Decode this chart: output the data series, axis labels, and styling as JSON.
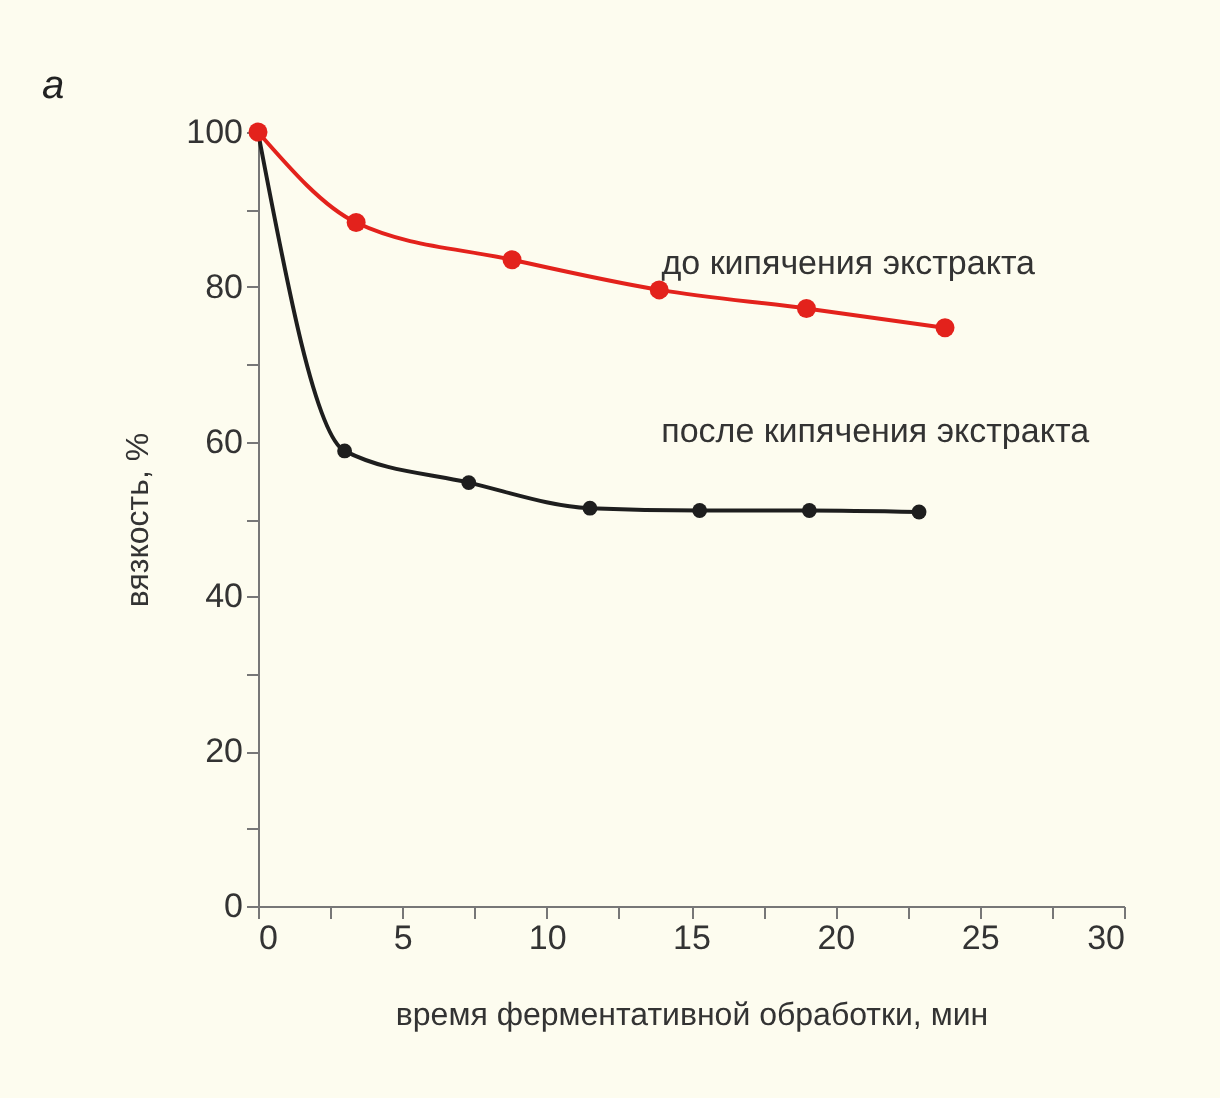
{
  "chart_data": {
    "type": "line",
    "title": "a",
    "xlabel": "время ферментативной обработки, мин",
    "ylabel": "вязкость, %",
    "xlim": [
      0,
      30
    ],
    "ylim": [
      0,
      100
    ],
    "xticks": [
      0,
      {
        "value": 2.5,
        "label": null
      },
      5,
      {
        "value": 7.5,
        "label": null
      },
      10,
      {
        "value": 12.5,
        "label": null
      },
      15,
      {
        "value": 17.5,
        "label": null
      },
      20,
      {
        "value": 22.5,
        "label": null
      },
      25,
      {
        "value": 27.5,
        "label": null
      },
      30
    ],
    "yticks": [
      0,
      {
        "value": 10,
        "label": null
      },
      20,
      {
        "value": 30,
        "label": null
      },
      40,
      {
        "value": 50,
        "label": null
      },
      60,
      {
        "value": 70,
        "label": null
      },
      80,
      {
        "value": 90,
        "label": null
      },
      100
    ],
    "grid": false,
    "legend": false,
    "marker": "circle",
    "line_style": "solid",
    "series": [
      {
        "name": "до кипячения экстракта",
        "color": "#e3221c",
        "x": [
          0,
          3.4,
          8.8,
          13.9,
          19.0,
          23.8
        ],
        "values": [
          100,
          88.3,
          83.5,
          79.6,
          77.2,
          74.7
        ]
      },
      {
        "name": "после кипячения экстракта",
        "color": "#1e1e1e",
        "x": [
          0,
          3.0,
          7.3,
          11.5,
          15.3,
          19.1,
          22.9
        ],
        "values": [
          100,
          58.8,
          54.7,
          51.4,
          51.1,
          51.1,
          50.9
        ]
      }
    ]
  }
}
